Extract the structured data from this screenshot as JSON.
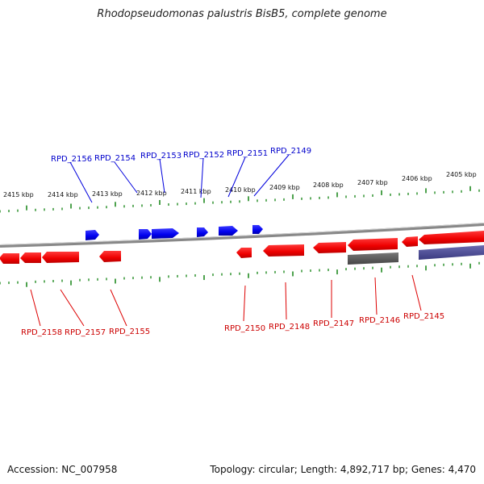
{
  "title": "Rhodopseudomonas palustris BisB5, complete genome",
  "footer": {
    "accession": "Accession: NC_007958",
    "topology": "Topology: circular; Length: 4,892,717 bp; Genes: 4,470"
  },
  "colors": {
    "forward_gene": "#0000ff",
    "reverse_gene": "#ff0000",
    "forward_label": "#0000cc",
    "reverse_label": "#cc0000",
    "backbone": "#888888",
    "ticks": "#228b22",
    "pseudo_gene": "#666666",
    "other_feature": "#555599"
  },
  "kbp_labels": [
    "2415 kbp",
    "2414 kbp",
    "2413 kbp",
    "2412 kbp",
    "2411 kbp",
    "2410 kbp",
    "2409 kbp",
    "2408 kbp",
    "2407 kbp",
    "2406 kbp",
    "2405 kbp"
  ],
  "forward_genes": [
    "RPD_2156",
    "RPD_2154",
    "RPD_2153",
    "RPD_2152",
    "RPD_2151",
    "RPD_2149"
  ],
  "reverse_genes": [
    "RPD_2158",
    "RPD_2157",
    "RPD_2155",
    "RPD_2150",
    "RPD_2148",
    "RPD_2147",
    "RPD_2146",
    "RPD_2145"
  ]
}
